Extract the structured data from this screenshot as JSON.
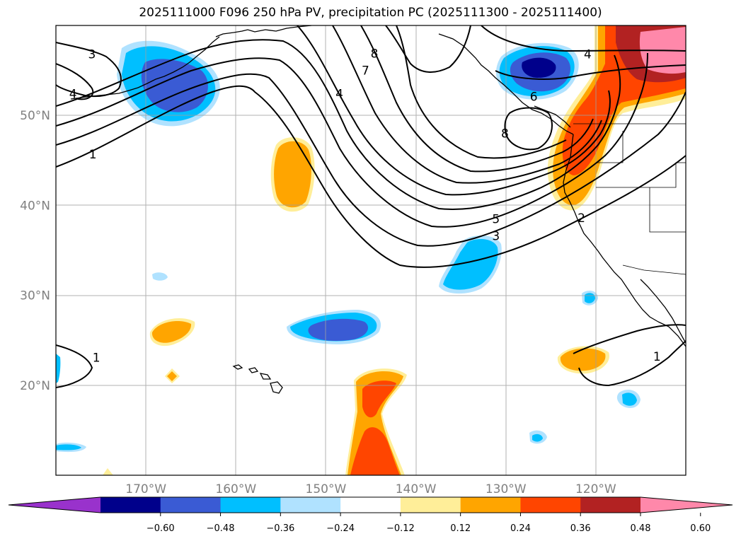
{
  "title": "2025111000 F096 250 hPa PV, precipitation PC (2025111300 - 2025111400)",
  "map": {
    "extent_lon": [
      -180,
      -110
    ],
    "extent_lat": [
      10,
      60
    ],
    "lat_ticks": [
      {
        "value": 50,
        "label": "50°N"
      },
      {
        "value": 40,
        "label": "40°N"
      },
      {
        "value": 30,
        "label": "30°N"
      },
      {
        "value": 20,
        "label": "20°N"
      }
    ],
    "lon_ticks": [
      {
        "value": -170,
        "label": "170°W"
      },
      {
        "value": -160,
        "label": "160°W"
      },
      {
        "value": -150,
        "label": "150°W"
      },
      {
        "value": -140,
        "label": "140°W"
      },
      {
        "value": -130,
        "label": "130°W"
      },
      {
        "value": -120,
        "label": "120°W"
      }
    ],
    "contour_labels": [
      {
        "text": "3",
        "lon": -176.0,
        "lat": 56.8
      },
      {
        "text": "4",
        "lon": -178.1,
        "lat": 52.4
      },
      {
        "text": "1",
        "lon": -175.9,
        "lat": 45.7
      },
      {
        "text": "8",
        "lon": -144.6,
        "lat": 56.9
      },
      {
        "text": "7",
        "lon": -145.6,
        "lat": 55.0
      },
      {
        "text": "4",
        "lon": -148.5,
        "lat": 52.4
      },
      {
        "text": "4",
        "lon": -120.9,
        "lat": 56.8
      },
      {
        "text": "6",
        "lon": -126.9,
        "lat": 52.1
      },
      {
        "text": "8",
        "lon": -130.1,
        "lat": 48.0
      },
      {
        "text": "2",
        "lon": -121.6,
        "lat": 38.6
      },
      {
        "text": "5",
        "lon": -131.1,
        "lat": 38.5
      },
      {
        "text": "3",
        "lon": -131.1,
        "lat": 36.6
      },
      {
        "text": "1",
        "lon": -175.5,
        "lat": 23.1
      },
      {
        "text": "1",
        "lon": -113.2,
        "lat": 23.2
      }
    ]
  },
  "colorbar": {
    "colors": [
      "#9932cc",
      "#00008b",
      "#3a5bd4",
      "#00bfff",
      "#b0e2ff",
      "#ffffff",
      "#ffee99",
      "#ffa500",
      "#ff4500",
      "#b22222",
      "#ff88aa"
    ],
    "ticks": [
      "−0.60",
      "−0.48",
      "−0.36",
      "−0.24",
      "−0.12",
      "0.12",
      "0.24",
      "0.36",
      "0.48",
      "0.60"
    ]
  }
}
